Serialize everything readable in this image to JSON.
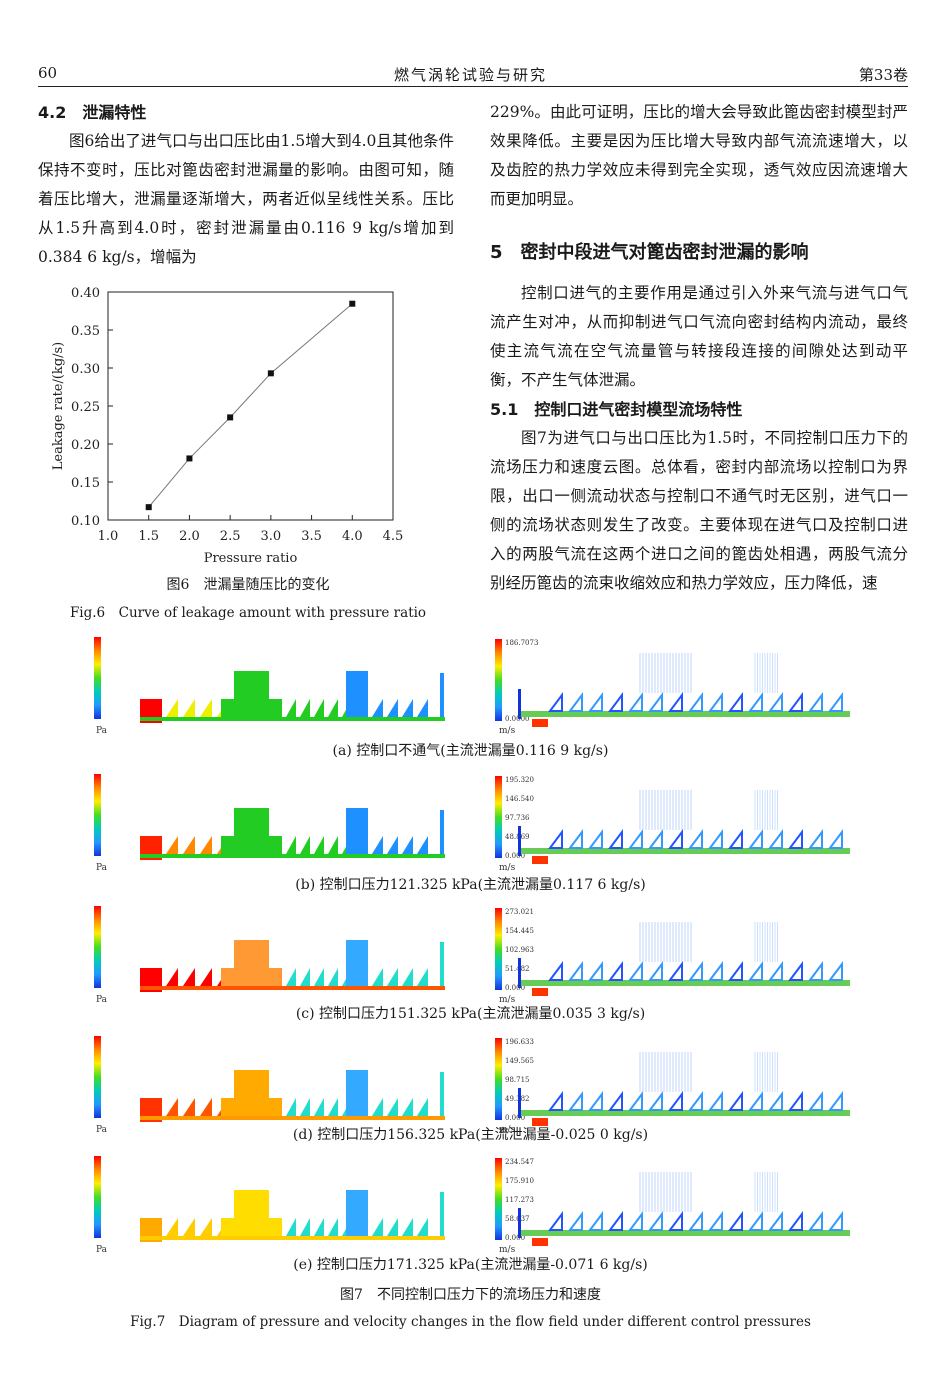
{
  "header": {
    "page_number": "60",
    "journal": "燃气涡轮试验与研究",
    "volume": "第33卷"
  },
  "left_column": {
    "section_heading": "4.2　泄漏特性",
    "paragraph": "图6给出了进气口与出口压比由1.5增大到4.0且其他条件保持不变时，压比对篦齿密封泄漏量的影响。由图可知，随着压比增大，泄漏量逐渐增大，两者近似呈线性关系。压比从1.5升高到4.0时，密封泄漏量由0.116 9 kg/s增加到0.384 6 kg/s，增幅为"
  },
  "right_column": {
    "continuation": "229%。由此可证明，压比的增大会导致此篦齿密封模型封严效果降低。主要是因为压比增大导致内部气流流速增大，以及齿腔的热力学效应未得到完全实现，透气效应因流速增大而更加明显。",
    "section5_heading": "5　密封中段进气对篦齿密封泄漏的影响",
    "section5_paragraph": "控制口进气的主要作用是通过引入外来气流与进气口气流产生对冲，从而抑制进气口气流向密封结构内流动，最终使主流气流在空气流量管与转接段连接的间隙处达到动平衡，不产生气体泄漏。",
    "section51_heading": "5.1　控制口进气密封模型流场特性",
    "section51_paragraph": "图7为进气口与出口压比为1.5时，不同控制口压力下的流场压力和速度云图。总体看，密封内部流场以控制口为界限，出口一侧流动状态与控制口不通气时无区别，进气口一侧的流场状态则发生了改变。主要体现在进气口及控制口进入的两股气流在这两个进口之间的篦齿处相遇，两股气流分别经历篦齿的流束收缩效应和热力学效应，压力降低，速"
  },
  "fig6": {
    "caption_cn": "图6　泄漏量随压比的变化",
    "caption_en": "Fig.6　Curve of leakage amount with pressure ratio"
  },
  "chart_data": {
    "type": "line",
    "x": [
      1.5,
      2.0,
      2.5,
      3.0,
      4.0
    ],
    "values": [
      0.1169,
      0.181,
      0.235,
      0.293,
      0.3846
    ],
    "xlabel": "Pressure ratio",
    "ylabel": "Leakage rate/(kg/s)",
    "xlim": [
      1.0,
      4.5
    ],
    "ylim": [
      0.1,
      0.4
    ],
    "xticks": [
      "1.0",
      "1.5",
      "2.0",
      "2.5",
      "3.0",
      "3.5",
      "4.0",
      "4.5"
    ],
    "yticks": [
      "0.10",
      "0.15",
      "0.20",
      "0.25",
      "0.30",
      "0.35",
      "0.40"
    ],
    "marker": "square",
    "grid": false
  },
  "fig7": {
    "pressure_unit": "Pa",
    "velocity_unit": "m/s",
    "panels": [
      {
        "caption": "(a)  控制口不通气(主流泄漏量0.116 9 kg/s)",
        "vel_max": "186.7073",
        "vel_min": "0.0000",
        "p_colors": [
          "#ff0000",
          "#eeee00",
          "#22cc22",
          "#22cc22",
          "#22cc22",
          "#1e90ff",
          "#1e90ff"
        ]
      },
      {
        "caption": "(b)  控制口压力121.325 kPa(主流泄漏量0.117 6 kg/s)",
        "vel_max": "195.320",
        "vel_min": "0.000",
        "vel_mid": [
          "146.540",
          "97.736",
          "48.869"
        ],
        "p_colors": [
          "#ff2200",
          "#ff8800",
          "#22cc22",
          "#22cc22",
          "#22cc22",
          "#1e90ff",
          "#1e90ff"
        ]
      },
      {
        "caption": "(c)  控制口压力151.325 kPa(主流泄漏量0.035 3 kg/s)",
        "vel_max": "273.021",
        "vel_min": "0.000",
        "vel_mid": [
          "154.445",
          "102.963",
          "51.482"
        ],
        "p_colors": [
          "#ff0000",
          "#ff0000",
          "#ff5500",
          "#ff9933",
          "#22ddcc",
          "#33aaff",
          "#22ddcc"
        ]
      },
      {
        "caption": "(d)  控制口压力156.325 kPa(主流泄漏量-0.025 0 kg/s)",
        "vel_max": "196.633",
        "vel_min": "0.000",
        "vel_mid": [
          "149.565",
          "98.715",
          "49.382"
        ],
        "p_colors": [
          "#ff3300",
          "#ff5500",
          "#ff9900",
          "#ffaa00",
          "#22ddcc",
          "#33aaff",
          "#22ddcc"
        ]
      },
      {
        "caption": "(e)  控制口压力171.325 kPa(主流泄漏量-0.071 6 kg/s)",
        "vel_max": "234.547",
        "vel_min": "0.000",
        "vel_mid": [
          "175.910",
          "117.273",
          "58.637"
        ],
        "p_colors": [
          "#ffaa00",
          "#ffcc00",
          "#ffcc00",
          "#ffdd00",
          "#22ddcc",
          "#33aaff",
          "#22ddcc"
        ]
      }
    ],
    "caption_cn": "图7　不同控制口压力下的流场压力和速度",
    "caption_en": "Fig.7　Diagram of pressure and velocity changes in the flow field under different control pressures"
  }
}
